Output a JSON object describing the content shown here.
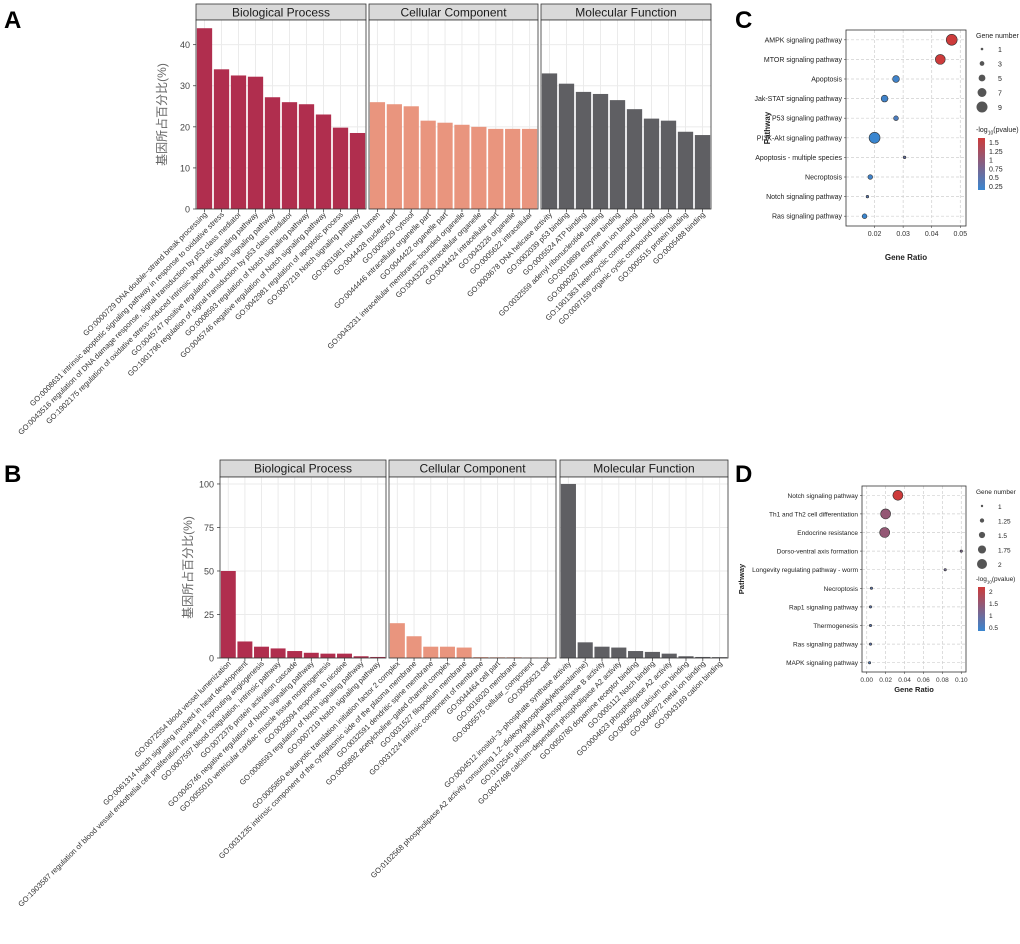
{
  "colors": {
    "bp": "#b02e4e",
    "cc": "#e9957e",
    "mf": "#5f5f63",
    "strip_fill": "#d9d9d9",
    "grid": "#ebebeb",
    "dot_high": "#cd3b3b",
    "dot_low": "#3a86d0"
  },
  "panels": {
    "A": {
      "label": "A"
    },
    "B": {
      "label": "B"
    },
    "C": {
      "label": "C"
    },
    "D": {
      "label": "D"
    }
  },
  "chart_data": [
    {
      "id": "A",
      "type": "bar",
      "ylabel": "基因所占百分比(%)",
      "ylim": [
        0,
        46
      ],
      "yticks": [
        0,
        10,
        20,
        30,
        40
      ],
      "facets": [
        {
          "name": "Biological Process",
          "color_key": "bp",
          "categories": [
            "GO:0000729 DNA double−strand break processing",
            "GO:0008631 intrinsic apoptotic signaling pathway in response to oxidative stress",
            "GO:0043516 regulation of DNA damage response, signal transduction by p53 class mediator",
            "GO:1902175 regulation of oxidative stress−induced intrinsic apoptotic signaling pathway",
            "GO:0045747 positive regulation of Notch signaling pathway",
            "GO:1901796 regulation of signal transduction by p53 class mediator",
            "GO:0008593 regulation of Notch signaling pathway",
            "GO:0045746 negative regulation of Notch signaling pathway",
            "GO:0042981 regulation of apoptotic process",
            "GO:0007219 Notch signaling pathway"
          ],
          "values": [
            44,
            34,
            32.5,
            32.2,
            27.2,
            26,
            25.5,
            23,
            19.8,
            18.5
          ]
        },
        {
          "name": "Cellular Component",
          "color_key": "cc",
          "categories": [
            "GO:0031981 nuclear lumen",
            "GO:0044428 nuclear part",
            "GO:0005829 cytosol",
            "GO:0044446 intracellular organelle part",
            "GO:0044422 organelle part",
            "GO:0043231 intracellular membrane−bounded organelle",
            "GO:0043229 intracellular organelle",
            "GO:0044424 intracellular part",
            "GO:0043226 organelle",
            "GO:0005622 intracellular"
          ],
          "values": [
            26,
            25.5,
            25,
            21.5,
            21,
            20.5,
            20,
            19.5,
            19.5,
            19.5
          ]
        },
        {
          "name": "Molecular Function",
          "color_key": "mf",
          "categories": [
            "GO:0003678 DNA helicase activity",
            "GO:0002039 p53 binding",
            "GO:0005524 ATP binding",
            "GO:0032559 adenyl ribonucleotide binding",
            "GO:0019899 enzyme binding",
            "GO:0000287 magnesium ion binding",
            "GO:1901363 heterocyclic compound binding",
            "GO:0097159 organic cyclic compound binding",
            "GO:0005515 protein binding",
            "GO:0005488 binding"
          ],
          "values": [
            33,
            30.5,
            28.5,
            28,
            26.5,
            24.3,
            22,
            21.5,
            18.8,
            18
          ]
        }
      ]
    },
    {
      "id": "B",
      "type": "bar",
      "ylabel": "基因所占百分比(%)",
      "ylim": [
        0,
        104
      ],
      "yticks": [
        0,
        25,
        50,
        75,
        100
      ],
      "facets": [
        {
          "name": "Biological Process",
          "color_key": "bp",
          "categories": [
            "GO:0072554 blood vessel lumenization",
            "GO:0061314 Notch signaling involved in heart development",
            "GO:1903587 regulation of blood vessel endothelial cell proliferation involved in sprouting angiogenesis",
            "GO:0007597 blood coagulation, intrinsic pathway",
            "GO:0072376 protein activation cascade",
            "GO:0045746 negative regulation of Notch signaling pathway",
            "GO:0055010 ventricular cardiac muscle tissue morphogenesis",
            "GO:0035094 response to nicotine",
            "GO:0008593 regulation of Notch signaling pathway",
            "GO:0007219 Notch signaling pathway"
          ],
          "values": [
            50,
            9.5,
            6.5,
            5.5,
            4,
            3,
            2.5,
            2.5,
            1,
            0.6
          ]
        },
        {
          "name": "Cellular Component",
          "color_key": "cc",
          "categories": [
            "GO:0005850 eukaryotic translation initiation factor 2 complex",
            "GO:0031235 intrinsic component of the cytoplasmic side of the plasma membrane",
            "GO:0032591 dendritic spine membrane",
            "GO:0005892 acetylcholine−gated channel complex",
            "GO:0031527 filopodium membrane",
            "GO:0031224 intrinsic component of membrane",
            "GO:0044464 cell part",
            "GO:0016020 membrane",
            "GO:0005575 cellular_component",
            "GO:0005623 cell"
          ],
          "values": [
            20,
            12.5,
            6.5,
            6.5,
            6,
            0.5,
            0.4,
            0.4,
            0.3,
            0.3
          ]
        },
        {
          "name": "Molecular Function",
          "color_key": "mf",
          "categories": [
            "GO:0004512 inositol−3−phosphate synthase activity",
            "GO:0102568 phospholipase A2 activity consuming 1,2−dioleoylphosphatidylethanolamine)",
            "GO:0102545 phosphatidyl phospholipase B activity",
            "GO:0047498 calcium−dependent phospholipase A2 activity",
            "GO:0050780 dopamine receptor binding",
            "GO:0005112 Notch binding",
            "GO:0004623 phospholipase A2 activity",
            "GO:0005509 calcium ion binding",
            "GO:0046872 metal ion binding",
            "GO:0043169 cation binding"
          ],
          "values": [
            100,
            9,
            6.5,
            6,
            4,
            3.5,
            2.5,
            1,
            0.6,
            0.5
          ]
        }
      ]
    },
    {
      "id": "C",
      "type": "scatter",
      "xlabel": "Gene Ratio",
      "ylabel": "Pathway",
      "xlim": [
        0.01,
        0.052
      ],
      "xticks": [
        0.02,
        0.03,
        0.04,
        0.05
      ],
      "xtick_labels": [
        "0.02",
        "0.03",
        "0.04",
        "0.05"
      ],
      "points": [
        {
          "pathway": "AMPK signaling pathway",
          "gene_ratio": 0.047,
          "gene_number": 9,
          "neg_log10_p": 1.5
        },
        {
          "pathway": "MTOR signaling pathway",
          "gene_ratio": 0.043,
          "gene_number": 8,
          "neg_log10_p": 1.5
        },
        {
          "pathway": "Apoptosis",
          "gene_ratio": 0.0275,
          "gene_number": 5,
          "neg_log10_p": 0.3
        },
        {
          "pathway": "Jak-STAT signaling pathway",
          "gene_ratio": 0.0235,
          "gene_number": 5,
          "neg_log10_p": 0.3
        },
        {
          "pathway": "P53 signaling pathway",
          "gene_ratio": 0.0275,
          "gene_number": 3,
          "neg_log10_p": 0.4
        },
        {
          "pathway": "PI3K-Akt signaling pathway",
          "gene_ratio": 0.02,
          "gene_number": 9,
          "neg_log10_p": 0.25
        },
        {
          "pathway": "Apoptosis - multiple species",
          "gene_ratio": 0.0305,
          "gene_number": 1,
          "neg_log10_p": 0.6
        },
        {
          "pathway": "Necroptosis",
          "gene_ratio": 0.0185,
          "gene_number": 3,
          "neg_log10_p": 0.3
        },
        {
          "pathway": "Notch signaling pathway",
          "gene_ratio": 0.0175,
          "gene_number": 1,
          "neg_log10_p": 0.5
        },
        {
          "pathway": "Ras signaling pathway",
          "gene_ratio": 0.0165,
          "gene_number": 3,
          "neg_log10_p": 0.25
        }
      ],
      "size_legend": {
        "title": "Gene number",
        "values": [
          1,
          3,
          5,
          7,
          9
        ]
      },
      "color_legend": {
        "title_prefix": "-log",
        "title_sub": "10",
        "title_suffix": "(pvalue)",
        "ticks": [
          "1.5",
          "1.25",
          "1",
          "0.75",
          "0.5",
          "0.25"
        ],
        "range": [
          0.25,
          1.5
        ]
      }
    },
    {
      "id": "D",
      "type": "scatter",
      "xlabel": "Gene Ratio",
      "ylabel": "Pathway",
      "xlim": [
        -0.005,
        0.105
      ],
      "xticks": [
        0.0,
        0.02,
        0.04,
        0.06,
        0.08,
        0.1
      ],
      "xtick_labels": [
        "0.00",
        "0.02",
        "0.04",
        "0.06",
        "0.08",
        "0.10"
      ],
      "points": [
        {
          "pathway": "Notch signaling pathway",
          "gene_ratio": 0.033,
          "gene_number": 2,
          "neg_log10_p": 2.2
        },
        {
          "pathway": "Th1 and Th2 cell differentiation",
          "gene_ratio": 0.02,
          "gene_number": 2,
          "neg_log10_p": 1.5
        },
        {
          "pathway": "Endocrine resistance",
          "gene_ratio": 0.019,
          "gene_number": 2,
          "neg_log10_p": 1.5
        },
        {
          "pathway": "Dorso-ventral axis formation",
          "gene_ratio": 0.1,
          "gene_number": 1,
          "neg_log10_p": 1.2
        },
        {
          "pathway": "Longevity regulating pathway - worm",
          "gene_ratio": 0.083,
          "gene_number": 1,
          "neg_log10_p": 1.1
        },
        {
          "pathway": "Necroptosis",
          "gene_ratio": 0.005,
          "gene_number": 1,
          "neg_log10_p": 0.8
        },
        {
          "pathway": "Rap1 signaling pathway",
          "gene_ratio": 0.004,
          "gene_number": 1,
          "neg_log10_p": 0.8
        },
        {
          "pathway": "Thermogenesis",
          "gene_ratio": 0.004,
          "gene_number": 1,
          "neg_log10_p": 0.8
        },
        {
          "pathway": "Ras signaling pathway",
          "gene_ratio": 0.004,
          "gene_number": 1,
          "neg_log10_p": 0.8
        },
        {
          "pathway": "MAPK signaling pathway",
          "gene_ratio": 0.003,
          "gene_number": 1,
          "neg_log10_p": 0.7
        }
      ],
      "size_legend": {
        "title": "Gene number",
        "values": [
          1,
          1.25,
          1.5,
          1.75,
          2
        ]
      },
      "color_legend": {
        "title_prefix": "-log",
        "title_sub": "10",
        "title_suffix": "(pvalue)",
        "ticks": [
          "2",
          "1.5",
          "1",
          "0.5"
        ],
        "range": [
          0.4,
          2.2
        ]
      }
    }
  ]
}
